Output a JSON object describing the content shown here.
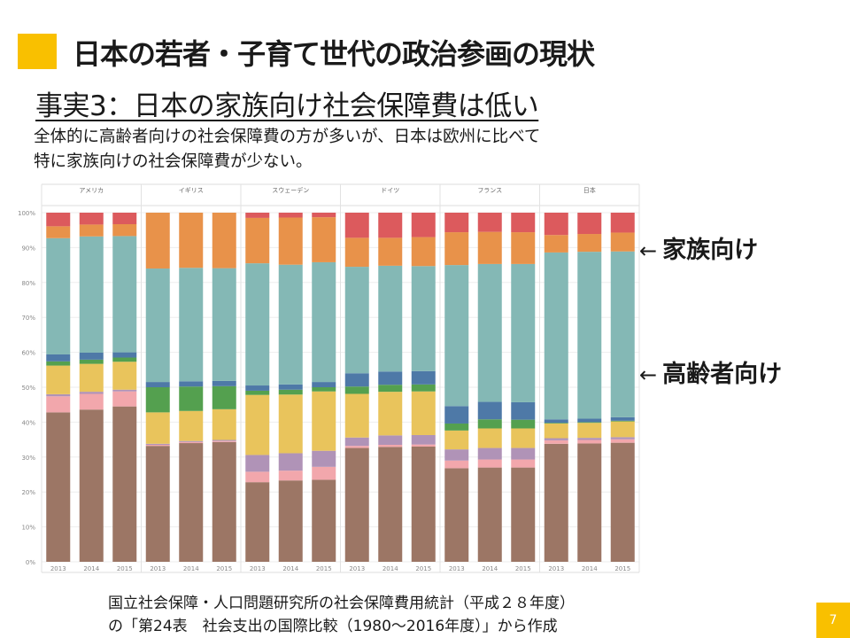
{
  "slide": {
    "title": "日本の若者・子育て世代の政治参画の現状",
    "subtitle": "事実3：日本の家族向け社会保障費は低い",
    "description": [
      "全体的に高齢者向けの社会保障費の方が多いが、日本は欧州に比べて",
      "特に家族向けの社会保障費が少ない。"
    ],
    "annotation_family": "家族向け",
    "annotation_elderly": "高齢者向け",
    "arrow": "←",
    "source": [
      "国立社会保障・人口問題研究所の社会保障費用統計（平成２８年度）",
      "の「第24表　社会支出の国際比較（1980〜2016年度）」から作成"
    ],
    "page_number": "7",
    "accent_color": "#f9c000"
  },
  "chart_data": {
    "type": "bar",
    "stacked": true,
    "percent_axis": true,
    "countries": [
      "アメリカ",
      "イギリス",
      "スウェーデン",
      "ドイツ",
      "フランス",
      "日本"
    ],
    "years": [
      "2013",
      "2014",
      "2015"
    ],
    "y_ticks": [
      "0%",
      "10%",
      "20%",
      "30%",
      "40%",
      "50%",
      "60%",
      "70%",
      "80%",
      "90%",
      "100%"
    ],
    "ylim": [
      0,
      100
    ],
    "segment_colors": [
      "#9c7665",
      "#f2a7ac",
      "#b093b7",
      "#e9c45c",
      "#54a04f",
      "#4e79a7",
      "#84b8b5",
      "#e8924a",
      "#dc5a5d"
    ],
    "data": [
      [
        [
          42.8,
          4.6,
          0.6,
          8.2,
          1.2,
          2.0,
          33.3,
          3.4,
          3.9
        ],
        [
          43.6,
          4.5,
          0.6,
          8.0,
          1.2,
          2.0,
          33.3,
          3.4,
          3.4
        ],
        [
          44.5,
          4.3,
          0.5,
          8.0,
          1.2,
          1.5,
          33.3,
          3.4,
          3.3
        ]
      ],
      [
        [
          33.2,
          0.3,
          0.3,
          9.0,
          7.2,
          1.5,
          32.5,
          16.0,
          0.0
        ],
        [
          34.0,
          0.3,
          0.3,
          8.6,
          7.0,
          1.5,
          32.5,
          15.8,
          0.0
        ],
        [
          34.3,
          0.3,
          0.3,
          8.8,
          6.6,
          1.5,
          32.3,
          15.9,
          0.0
        ]
      ],
      [
        [
          22.8,
          3.0,
          4.8,
          17.2,
          1.2,
          1.5,
          35.0,
          13.0,
          1.5
        ],
        [
          23.3,
          2.8,
          5.0,
          16.8,
          1.4,
          1.5,
          34.3,
          13.5,
          1.4
        ],
        [
          23.5,
          3.7,
          4.6,
          17.0,
          1.2,
          1.5,
          34.3,
          12.9,
          1.3
        ]
      ],
      [
        [
          32.6,
          0.6,
          2.4,
          12.5,
          2.1,
          3.8,
          30.5,
          8.3,
          7.2
        ],
        [
          32.9,
          0.6,
          2.7,
          12.5,
          2.0,
          3.8,
          30.3,
          8.0,
          7.2
        ],
        [
          33.0,
          0.6,
          2.7,
          12.5,
          2.0,
          3.8,
          30.1,
          8.3,
          7.0
        ]
      ],
      [
        [
          26.8,
          2.2,
          3.2,
          5.4,
          2.0,
          5.0,
          40.4,
          9.4,
          5.6
        ],
        [
          27.0,
          2.3,
          3.3,
          5.6,
          2.6,
          5.0,
          39.5,
          9.2,
          5.5
        ],
        [
          27.0,
          2.3,
          3.3,
          5.6,
          2.5,
          5.0,
          39.6,
          9.1,
          5.6
        ]
      ],
      [
        [
          33.8,
          1.0,
          0.6,
          4.2,
          0.2,
          1.0,
          47.8,
          5.0,
          6.4
        ],
        [
          33.9,
          1.0,
          0.6,
          4.3,
          0.2,
          1.0,
          47.8,
          5.1,
          6.1
        ],
        [
          34.1,
          1.0,
          0.6,
          4.5,
          0.2,
          1.0,
          47.5,
          5.4,
          5.7
        ]
      ]
    ]
  }
}
